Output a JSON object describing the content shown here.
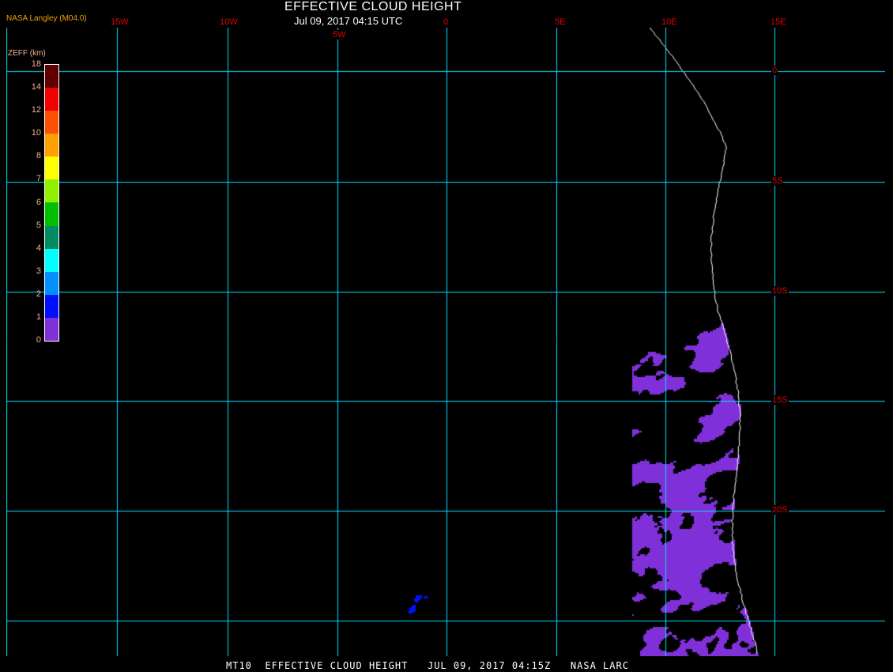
{
  "header": {
    "title": "EFFECTIVE CLOUD HEIGHT",
    "datetime": "Jul 09, 2017 04:15 UTC",
    "credit": "NASA Langley (M04.0)"
  },
  "longitude_labels": [
    "15W",
    "10W",
    "5W",
    "0",
    "5E",
    "10E",
    "15E"
  ],
  "latitude_labels": [
    "0",
    "5S",
    "10S",
    "15S",
    "20S"
  ],
  "legend": {
    "title": "ZEFF (km)",
    "ticks": [
      "18",
      "14",
      "12",
      "10",
      "8",
      "7",
      "6",
      "5",
      "4",
      "3",
      "2",
      "1",
      "0"
    ],
    "colors": [
      "#600000",
      "#f00000",
      "#ff5000",
      "#ffa000",
      "#ffff00",
      "#90f000",
      "#00c000",
      "#008c60",
      "#00ffff",
      "#0090ff",
      "#0010ff",
      "#8030d8"
    ]
  },
  "colors": {
    "grid": "#00e0ff",
    "coast": "#ffffff",
    "labels": "#e00000",
    "background": "#000000"
  },
  "footer": "MT10  EFFECTIVE CLOUD HEIGHT   JUL 09, 2017 04:15Z   NASA LARC"
}
